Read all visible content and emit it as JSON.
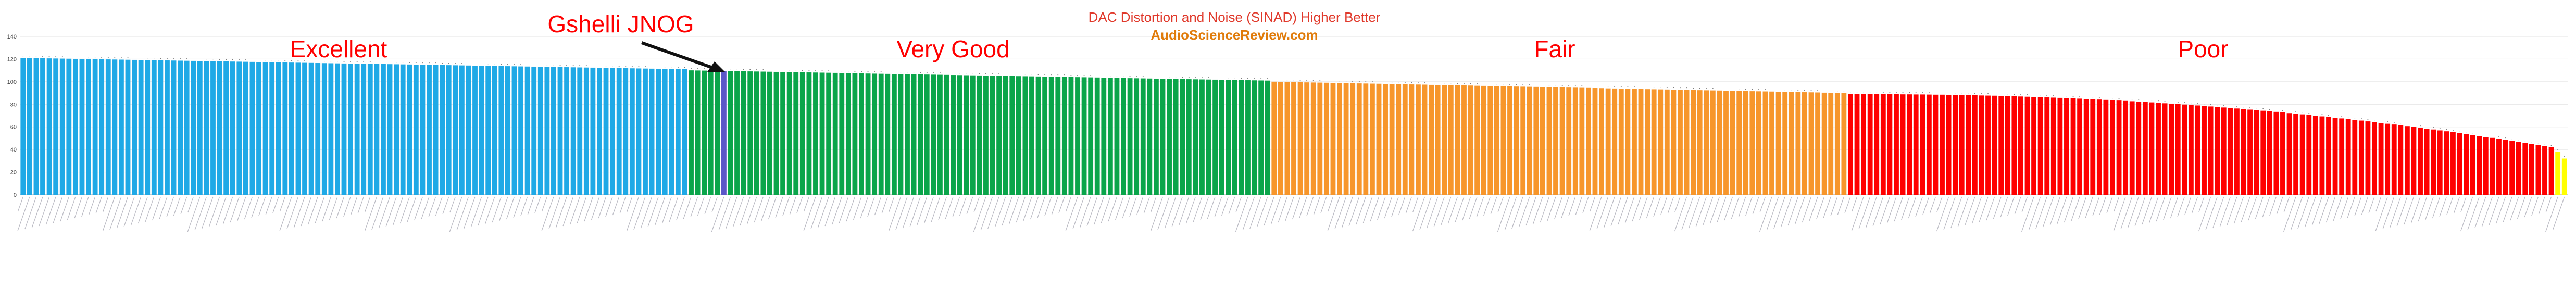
{
  "chart_data": {
    "type": "bar",
    "title": "DAC Distortion and Noise (SINAD) Higher Better",
    "subtitle": "AudioScienceReview.com",
    "xlabel": "",
    "ylabel": "",
    "ylim": [
      0,
      140
    ],
    "yticks": [
      0,
      20,
      40,
      60,
      80,
      100,
      120,
      140
    ],
    "grid": true,
    "highlight": {
      "label": "Gshelli JNOG",
      "index": 107
    },
    "colors": {
      "Excellent": "#1fa9e6",
      "Very Good": "#0aa54a",
      "Fair": "#f7962b",
      "Poor": "#ff0000",
      "Lowest": "#ffff00",
      "Highlight": "#5b57c8"
    },
    "bands": [
      {
        "name": "Excellent",
        "count": 102,
        "start": 121,
        "end": 111
      },
      {
        "name": "Very Good",
        "count": 89,
        "start": 110,
        "end": 101
      },
      {
        "name": "Fair",
        "count": 88,
        "start": 100,
        "end": 90
      },
      {
        "name": "Poor",
        "count": 108,
        "start": 89,
        "end": 42
      }
    ],
    "lowest": [
      {
        "value": 38
      },
      {
        "value": 32
      }
    ],
    "bar_count": 389
  }
}
